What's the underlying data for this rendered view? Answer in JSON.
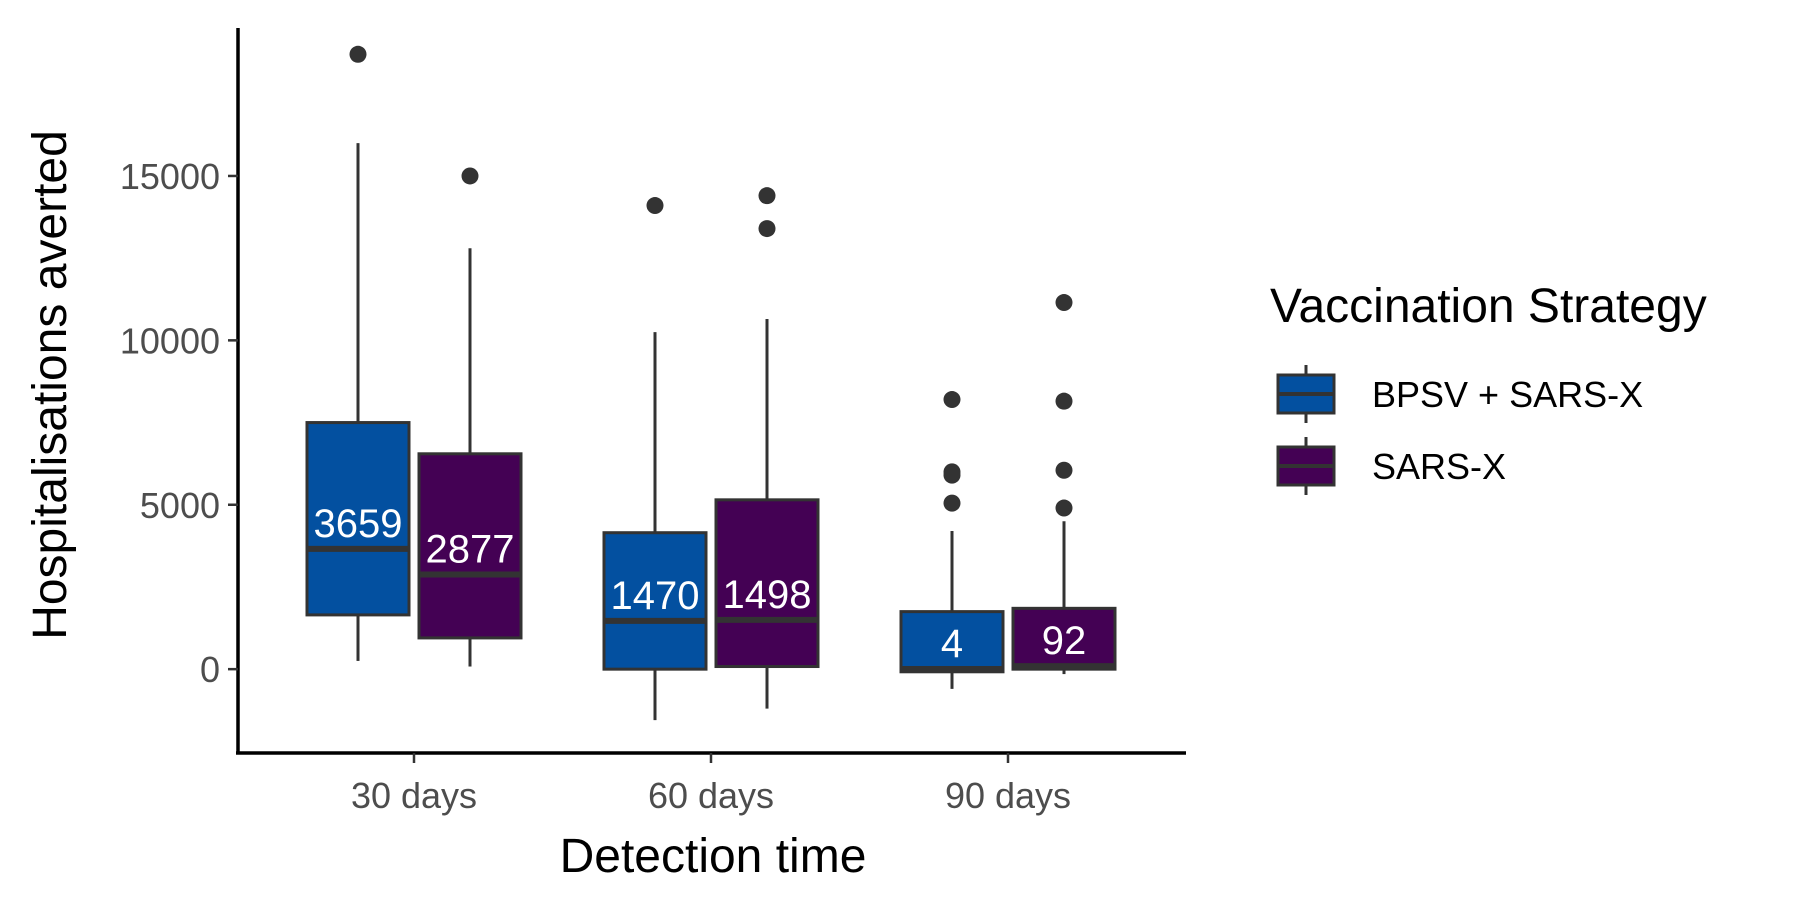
{
  "chart_data": {
    "type": "box",
    "xlabel": "Detection time",
    "ylabel": "Hospitalisations averted",
    "categories": [
      "30 days",
      "60 days",
      "90 days"
    ],
    "ylim": [
      -2550,
      19500
    ],
    "yticks": [
      0,
      5000,
      10000,
      15000
    ],
    "ytick_labels": [
      "0",
      "5000",
      "10000",
      "15000"
    ],
    "grid": false,
    "legend": {
      "title": "Vaccination Strategy",
      "position": "right"
    },
    "colors": {
      "BPSV + SARS-X": "#0350A0",
      "SARS-X": "#440154",
      "outline": "#333333",
      "axis": "#000000"
    },
    "series": [
      {
        "name": "BPSV + SARS-X",
        "boxes": [
          {
            "category": "30 days",
            "min": 250,
            "q1": 1650,
            "median": 3659,
            "q3": 7500,
            "max": 16000,
            "outliers": [
              18700
            ],
            "label": "3659"
          },
          {
            "category": "60 days",
            "min": -1550,
            "q1": 0,
            "median": 1470,
            "q3": 4150,
            "max": 10250,
            "outliers": [
              14100
            ],
            "label": "1470"
          },
          {
            "category": "90 days",
            "min": -600,
            "q1": -80,
            "median": 4,
            "q3": 1750,
            "max": 4200,
            "outliers": [
              8200,
              6000,
              5900,
              5050
            ],
            "label": "4"
          }
        ]
      },
      {
        "name": "SARS-X",
        "boxes": [
          {
            "category": "30 days",
            "min": 80,
            "q1": 950,
            "median": 2877,
            "q3": 6550,
            "max": 12800,
            "outliers": [
              15000
            ],
            "label": "2877"
          },
          {
            "category": "60 days",
            "min": -1200,
            "q1": 80,
            "median": 1498,
            "q3": 5150,
            "max": 10650,
            "outliers": [
              14400,
              13400
            ],
            "label": "1498"
          },
          {
            "category": "90 days",
            "min": -150,
            "q1": 0,
            "median": 92,
            "q3": 1850,
            "max": 4500,
            "outliers": [
              11150,
              8150,
              6050,
              4900
            ],
            "label": "92"
          }
        ]
      }
    ]
  }
}
